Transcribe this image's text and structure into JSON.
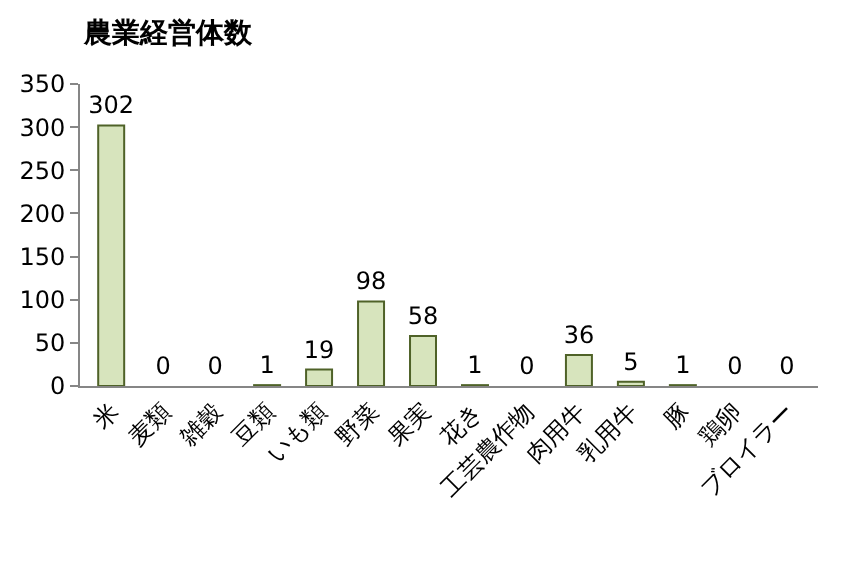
{
  "chart_data": {
    "type": "bar",
    "title": "農業経営体数",
    "categories": [
      "米",
      "麦類",
      "雑穀",
      "豆類",
      "いも類",
      "野菜",
      "果実",
      "花き",
      "工芸農作物",
      "肉用牛",
      "乳用牛",
      "豚",
      "鶏卵",
      "ブロイラー"
    ],
    "values": [
      302,
      0,
      0,
      1,
      19,
      98,
      58,
      1,
      0,
      36,
      5,
      1,
      0,
      0
    ],
    "color": "#d7e4bd",
    "ylim": [
      0,
      350
    ],
    "yticks": [
      0,
      50,
      100,
      150,
      200,
      250,
      300,
      350
    ],
    "grid": false,
    "legend": false,
    "data_labels": true
  }
}
